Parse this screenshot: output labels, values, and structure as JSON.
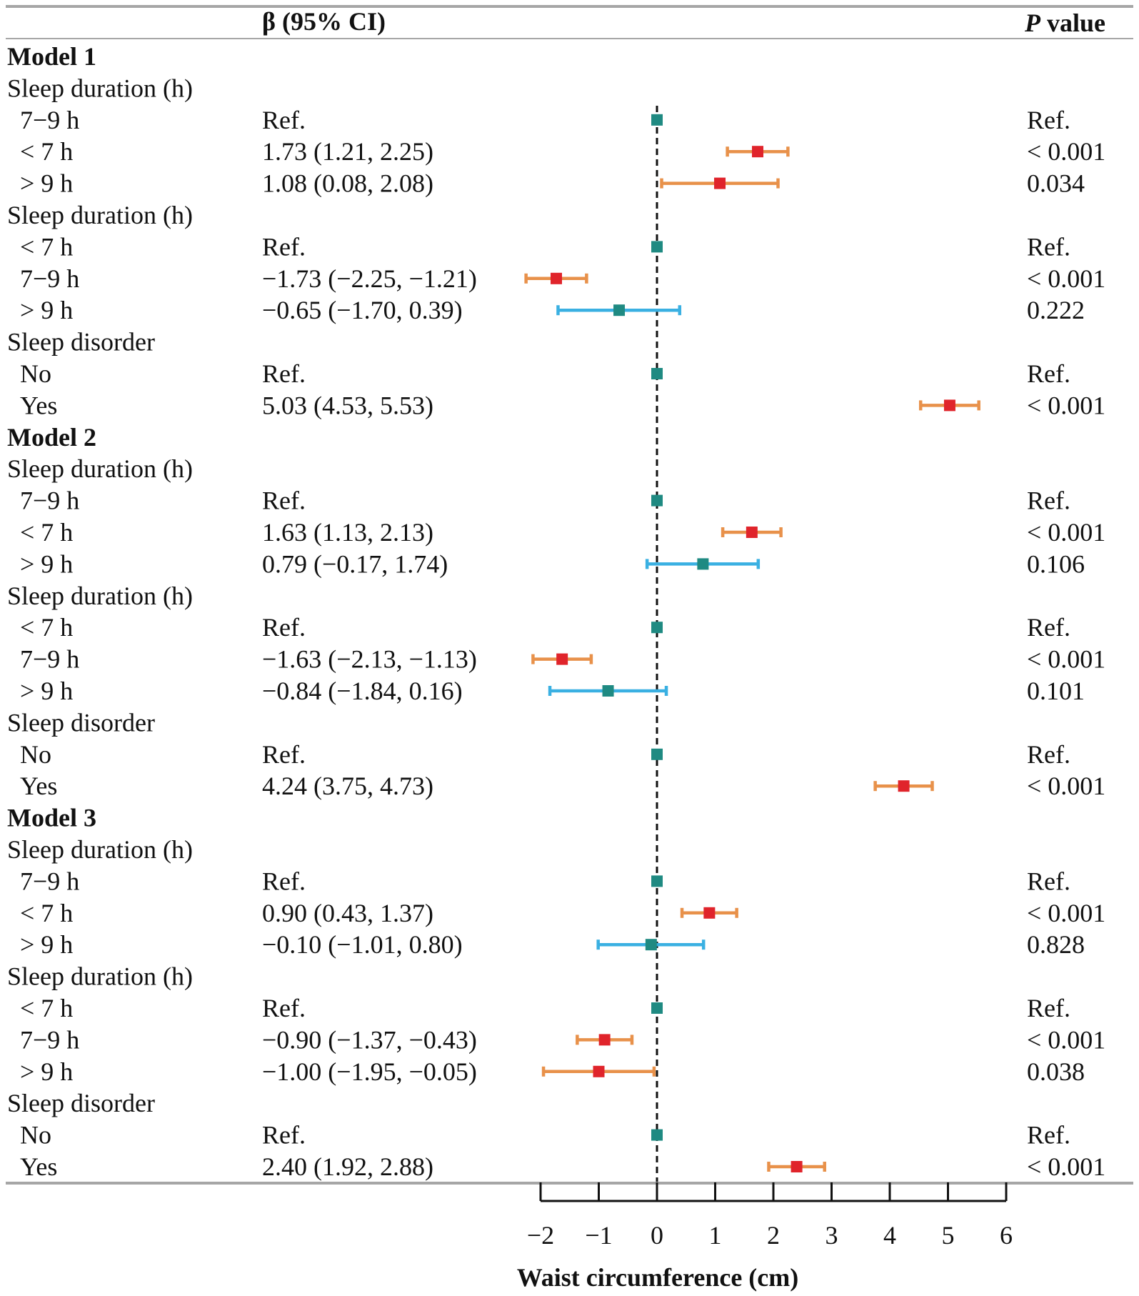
{
  "chart_data": {
    "type": "forest",
    "header": {
      "estimate_col": "β (95% CI)",
      "p_col_italic": "P",
      "p_col_rest": " value"
    },
    "xlabel": "Waist circumference (cm)",
    "xlim": [
      -2,
      6
    ],
    "xticks": [
      -2,
      -1,
      0,
      1,
      2,
      3,
      4,
      5,
      6
    ],
    "xtick_labels": [
      "−2",
      "−1",
      "0",
      "1",
      "2",
      "3",
      "4",
      "5",
      "6"
    ],
    "reference_line": 0,
    "colors": {
      "significant_ci": "#E8914A",
      "nonsignificant_ci": "#3AB0E2",
      "significant_point": "#E0242B",
      "ref_point": "#1F8A82",
      "rule": "#A6A6A6"
    },
    "rows": [
      {
        "kind": "model",
        "label": "Model 1"
      },
      {
        "kind": "group",
        "label": "Sleep duration (h)"
      },
      {
        "kind": "item",
        "label": "7−9 h",
        "ci_text": "Ref.",
        "p_text": "Ref.",
        "est": 0,
        "lo": null,
        "hi": null,
        "status": "ref"
      },
      {
        "kind": "item",
        "label": "< 7 h",
        "ci_text": "1.73 (1.21, 2.25)",
        "p_text": "< 0.001",
        "est": 1.73,
        "lo": 1.21,
        "hi": 2.25,
        "status": "sig"
      },
      {
        "kind": "item",
        "label": "> 9 h",
        "ci_text": "1.08 (0.08, 2.08)",
        "p_text": "0.034",
        "est": 1.08,
        "lo": 0.08,
        "hi": 2.08,
        "status": "sig"
      },
      {
        "kind": "group",
        "label": "Sleep duration (h)"
      },
      {
        "kind": "item",
        "label": "< 7 h",
        "ci_text": "Ref.",
        "p_text": "Ref.",
        "est": 0,
        "lo": null,
        "hi": null,
        "status": "ref"
      },
      {
        "kind": "item",
        "label": "7−9 h",
        "ci_text": "−1.73 (−2.25, −1.21)",
        "p_text": "< 0.001",
        "est": -1.73,
        "lo": -2.25,
        "hi": -1.21,
        "status": "sig"
      },
      {
        "kind": "item",
        "label": "> 9 h",
        "ci_text": "−0.65 (−1.70, 0.39)",
        "p_text": "0.222",
        "est": -0.65,
        "lo": -1.7,
        "hi": 0.39,
        "status": "ns"
      },
      {
        "kind": "group",
        "label": "Sleep disorder"
      },
      {
        "kind": "item",
        "label": "No",
        "ci_text": "Ref.",
        "p_text": "Ref.",
        "est": 0,
        "lo": null,
        "hi": null,
        "status": "ref"
      },
      {
        "kind": "item",
        "label": "Yes",
        "ci_text": "5.03 (4.53, 5.53)",
        "p_text": "< 0.001",
        "est": 5.03,
        "lo": 4.53,
        "hi": 5.53,
        "status": "sig"
      },
      {
        "kind": "model",
        "label": "Model 2"
      },
      {
        "kind": "group",
        "label": "Sleep duration (h)"
      },
      {
        "kind": "item",
        "label": "7−9 h",
        "ci_text": "Ref.",
        "p_text": "Ref.",
        "est": 0,
        "lo": null,
        "hi": null,
        "status": "ref"
      },
      {
        "kind": "item",
        "label": "< 7 h",
        "ci_text": "1.63 (1.13, 2.13)",
        "p_text": "< 0.001",
        "est": 1.63,
        "lo": 1.13,
        "hi": 2.13,
        "status": "sig"
      },
      {
        "kind": "item",
        "label": "> 9 h",
        "ci_text": "0.79 (−0.17, 1.74)",
        "p_text": "0.106",
        "est": 0.79,
        "lo": -0.17,
        "hi": 1.74,
        "status": "ns"
      },
      {
        "kind": "group",
        "label": "Sleep duration (h)"
      },
      {
        "kind": "item",
        "label": "< 7 h",
        "ci_text": "Ref.",
        "p_text": "Ref.",
        "est": 0,
        "lo": null,
        "hi": null,
        "status": "ref"
      },
      {
        "kind": "item",
        "label": "7−9 h",
        "ci_text": "−1.63 (−2.13, −1.13)",
        "p_text": "< 0.001",
        "est": -1.63,
        "lo": -2.13,
        "hi": -1.13,
        "status": "sig"
      },
      {
        "kind": "item",
        "label": "> 9 h",
        "ci_text": "−0.84 (−1.84, 0.16)",
        "p_text": "0.101",
        "est": -0.84,
        "lo": -1.84,
        "hi": 0.16,
        "status": "ns"
      },
      {
        "kind": "group",
        "label": "Sleep disorder"
      },
      {
        "kind": "item",
        "label": "No",
        "ci_text": "Ref.",
        "p_text": "Ref.",
        "est": 0,
        "lo": null,
        "hi": null,
        "status": "ref"
      },
      {
        "kind": "item",
        "label": "Yes",
        "ci_text": "4.24 (3.75, 4.73)",
        "p_text": "< 0.001",
        "est": 4.24,
        "lo": 3.75,
        "hi": 4.73,
        "status": "sig"
      },
      {
        "kind": "model",
        "label": "Model 3"
      },
      {
        "kind": "group",
        "label": "Sleep duration (h)"
      },
      {
        "kind": "item",
        "label": "7−9 h",
        "ci_text": "Ref.",
        "p_text": "Ref.",
        "est": 0,
        "lo": null,
        "hi": null,
        "status": "ref"
      },
      {
        "kind": "item",
        "label": "< 7 h",
        "ci_text": "0.90 (0.43, 1.37)",
        "p_text": "< 0.001",
        "est": 0.9,
        "lo": 0.43,
        "hi": 1.37,
        "status": "sig"
      },
      {
        "kind": "item",
        "label": "> 9 h",
        "ci_text": "−0.10 (−1.01, 0.80)",
        "p_text": "0.828",
        "est": -0.1,
        "lo": -1.01,
        "hi": 0.8,
        "status": "ns"
      },
      {
        "kind": "group",
        "label": "Sleep duration (h)"
      },
      {
        "kind": "item",
        "label": "< 7 h",
        "ci_text": "Ref.",
        "p_text": "Ref.",
        "est": 0,
        "lo": null,
        "hi": null,
        "status": "ref"
      },
      {
        "kind": "item",
        "label": "7−9 h",
        "ci_text": "−0.90 (−1.37, −0.43)",
        "p_text": "< 0.001",
        "est": -0.9,
        "lo": -1.37,
        "hi": -0.43,
        "status": "sig"
      },
      {
        "kind": "item",
        "label": "> 9 h",
        "ci_text": "−1.00 (−1.95, −0.05)",
        "p_text": "0.038",
        "est": -1.0,
        "lo": -1.95,
        "hi": -0.05,
        "status": "sig"
      },
      {
        "kind": "group",
        "label": "Sleep disorder"
      },
      {
        "kind": "item",
        "label": "No",
        "ci_text": "Ref.",
        "p_text": "Ref.",
        "est": 0,
        "lo": null,
        "hi": null,
        "status": "ref"
      },
      {
        "kind": "item",
        "label": "Yes",
        "ci_text": "2.40 (1.92, 2.88)",
        "p_text": "< 0.001",
        "est": 2.4,
        "lo": 1.92,
        "hi": 2.88,
        "status": "sig"
      }
    ]
  }
}
